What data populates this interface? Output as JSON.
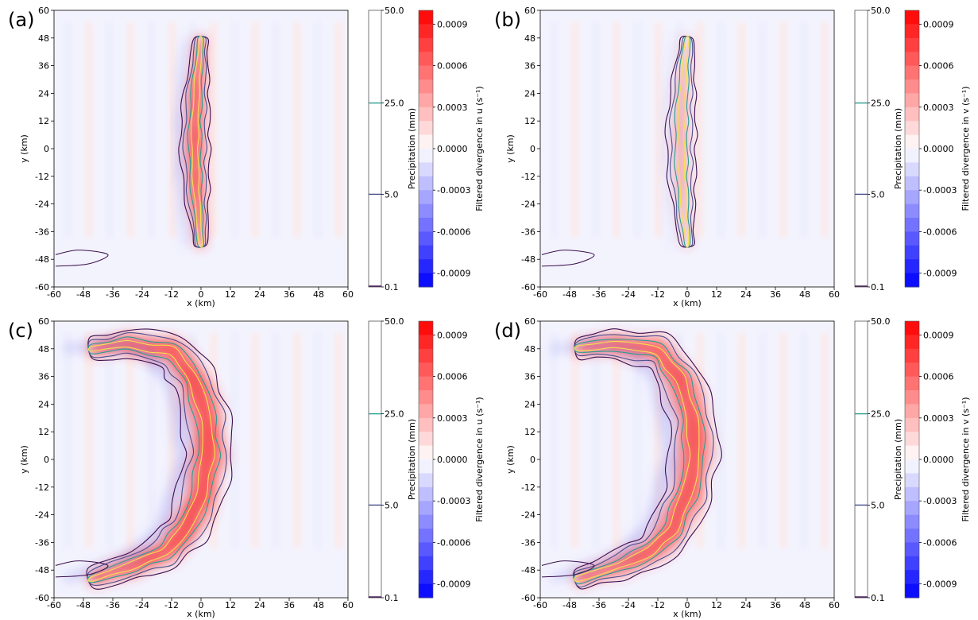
{
  "figure": {
    "colors": {
      "precip_0_1": "#3b0f4f",
      "precip_5": "#4a4f8f",
      "precip_25": "#2a9d8f",
      "precip_50": "#f4e04d",
      "div_pos": "#ff0000",
      "div_neg": "#0000ff",
      "frame": "#000000"
    }
  },
  "chart_data": [
    {
      "type": "contour",
      "panel_label": "(a)",
      "xlabel": "x (km)",
      "ylabel": "y (km)",
      "xlim": [
        -60,
        60
      ],
      "ylim": [
        -60,
        60
      ],
      "x_ticks": [
        "-60",
        "-48",
        "-36",
        "-24",
        "-12",
        "0",
        "12",
        "24",
        "36",
        "48",
        "60"
      ],
      "y_ticks": [
        "60",
        "48",
        "36",
        "24",
        "12",
        "0",
        "-12",
        "-24",
        "-36",
        "-48",
        "-60"
      ],
      "precip_colorbar": {
        "label": "Precipitation (mm)",
        "levels": [
          "50.0",
          "25.0",
          "5.0",
          "0.1"
        ]
      },
      "div_colorbar": {
        "label": "Filtered divergence in u (s⁻¹)",
        "ticks": [
          "0.0009",
          "0.0006",
          "0.0003",
          "0.0000",
          "-0.0003",
          "-0.0006",
          "-0.0009"
        ],
        "range": [
          -0.001,
          0.001
        ]
      },
      "shape": "band",
      "band_center_x": 0,
      "band_y_range": [
        -42,
        48
      ],
      "precip_width_km": 12,
      "divergence_peak": 0.0007
    },
    {
      "type": "contour",
      "panel_label": "(b)",
      "xlabel": "x (km)",
      "ylabel": "y (km)",
      "xlim": [
        -60,
        60
      ],
      "ylim": [
        -60,
        60
      ],
      "x_ticks": [
        "-60",
        "-48",
        "-36",
        "-24",
        "-12",
        "0",
        "12",
        "24",
        "36",
        "48",
        "60"
      ],
      "y_ticks": [
        "60",
        "48",
        "36",
        "24",
        "12",
        "0",
        "-12",
        "-24",
        "-36",
        "-48",
        "-60"
      ],
      "precip_colorbar": {
        "label": "Precipitation (mm)",
        "levels": [
          "50.0",
          "25.0",
          "5.0",
          "0.1"
        ]
      },
      "div_colorbar": {
        "label": "Filtered divergence in v (s⁻¹)",
        "ticks": [
          "0.0009",
          "0.0006",
          "0.0003",
          "0.0000",
          "-0.0003",
          "-0.0006",
          "-0.0009"
        ],
        "range": [
          -0.001,
          0.001
        ]
      },
      "shape": "band",
      "band_center_x": 0,
      "band_y_range": [
        -42,
        48
      ],
      "precip_width_km": 12,
      "divergence_peak": 0.0001
    },
    {
      "type": "contour",
      "panel_label": "(c)",
      "xlabel": "x (km)",
      "ylabel": "y (km)",
      "xlim": [
        -60,
        60
      ],
      "ylim": [
        -60,
        60
      ],
      "x_ticks": [
        "-60",
        "-48",
        "-36",
        "-24",
        "-12",
        "0",
        "12",
        "24",
        "36",
        "48",
        "60"
      ],
      "y_ticks": [
        "60",
        "48",
        "36",
        "24",
        "12",
        "0",
        "-12",
        "-24",
        "-36",
        "-48",
        "-60"
      ],
      "precip_colorbar": {
        "label": "Precipitation (mm)",
        "levels": [
          "50.0",
          "25.0",
          "5.0",
          "0.1"
        ]
      },
      "div_colorbar": {
        "label": "Filtered divergence in u (s⁻¹)",
        "ticks": [
          "0.0009",
          "0.0006",
          "0.0003",
          "0.0000",
          "-0.0003",
          "-0.0006",
          "-0.0009"
        ],
        "range": [
          -0.001,
          0.001
        ]
      },
      "shape": "bow",
      "path": [
        [
          -45,
          48
        ],
        [
          -30,
          50
        ],
        [
          -12,
          47
        ],
        [
          -3,
          35
        ],
        [
          2,
          18
        ],
        [
          3,
          2
        ],
        [
          0,
          -15
        ],
        [
          -6,
          -30
        ],
        [
          -15,
          -40
        ],
        [
          -28,
          -46
        ],
        [
          -45,
          -52
        ]
      ],
      "precip_width_km": 20,
      "divergence_peak": 0.0007
    },
    {
      "type": "contour",
      "panel_label": "(d)",
      "xlabel": "x (km)",
      "ylabel": "y (km)",
      "xlim": [
        -60,
        60
      ],
      "ylim": [
        -60,
        60
      ],
      "x_ticks": [
        "-60",
        "-48",
        "-36",
        "-24",
        "-12",
        "0",
        "12",
        "24",
        "36",
        "48",
        "60"
      ],
      "y_ticks": [
        "60",
        "48",
        "36",
        "24",
        "12",
        "0",
        "-12",
        "-24",
        "-36",
        "-48",
        "-60"
      ],
      "precip_colorbar": {
        "label": "Precipitation (mm)",
        "levels": [
          "50.0",
          "25.0",
          "5.0",
          "0.1"
        ]
      },
      "div_colorbar": {
        "label": "Filtered divergence in v (s⁻¹)",
        "ticks": [
          "0.0009",
          "0.0006",
          "0.0003",
          "0.0000",
          "-0.0003",
          "-0.0006",
          "-0.0009"
        ],
        "range": [
          -0.001,
          0.001
        ]
      },
      "shape": "bow",
      "path": [
        [
          -45,
          48
        ],
        [
          -30,
          50
        ],
        [
          -12,
          47
        ],
        [
          -3,
          35
        ],
        [
          2,
          18
        ],
        [
          3,
          2
        ],
        [
          0,
          -15
        ],
        [
          -6,
          -30
        ],
        [
          -15,
          -40
        ],
        [
          -28,
          -46
        ],
        [
          -45,
          -52
        ]
      ],
      "precip_width_km": 20,
      "divergence_peak": 0.0006
    }
  ]
}
